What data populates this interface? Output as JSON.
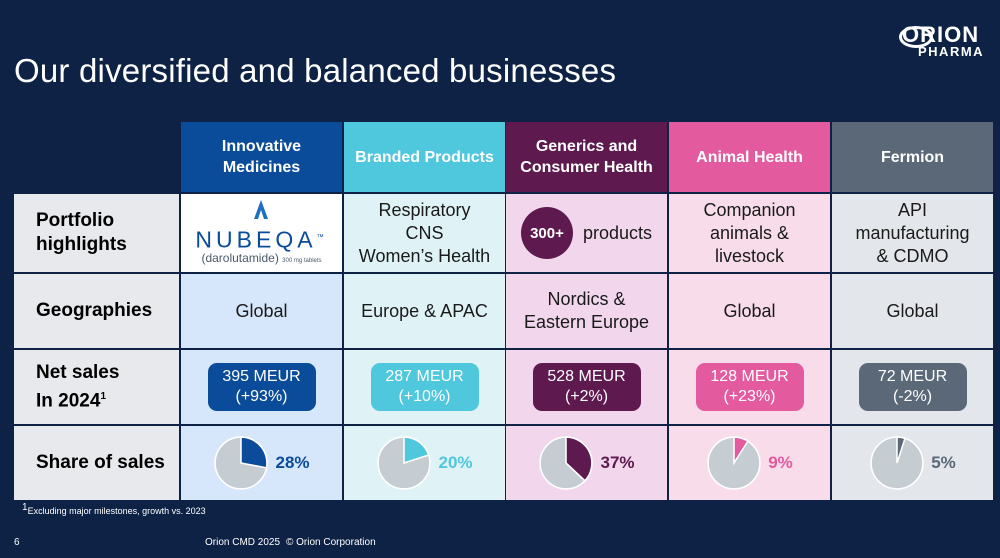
{
  "slide_title": "Our diversified and balanced businesses",
  "logo": {
    "line1": "ORION",
    "line2": "PHARMA"
  },
  "columns": [
    {
      "name": "Innovative Medicines",
      "head_color": "#0a4c9a",
      "bg": "#d6e6fb",
      "accent": "#0a4c9a",
      "portfolio": "",
      "geography": "Global",
      "net_sales": "395 MEUR",
      "growth": "(+93%)",
      "share": 28,
      "share_label": "28%"
    },
    {
      "name": "Branded Products",
      "head_color": "#4fc7dc",
      "bg": "#dff3f7",
      "accent": "#4fc7dc",
      "portfolio": "Respiratory\nCNS\nWomen’s Health",
      "geography": "Europe & APAC",
      "net_sales": "287 MEUR",
      "growth": "(+10%)",
      "share": 20,
      "share_label": "20%"
    },
    {
      "name": "Generics and Consumer Health",
      "head_color": "#5e1a4f",
      "bg": "#f1d6ec",
      "accent": "#5e1a4f",
      "portfolio": "products",
      "geography": "Nordics &\nEastern Europe",
      "net_sales": "528 MEUR",
      "growth": "(+2%)",
      "share": 37,
      "share_label": "37%"
    },
    {
      "name": "Animal Health",
      "head_color": "#e35a9f",
      "bg": "#f8dcea",
      "accent": "#e35a9f",
      "portfolio": "Companion\nanimals &\nlivestock",
      "geography": "Global",
      "net_sales": "128 MEUR",
      "growth": "(+23%)",
      "share": 9,
      "share_label": "9%"
    },
    {
      "name": "Fermion",
      "head_color": "#5a6878",
      "bg": "#e3e6ea",
      "accent": "#5a6878",
      "portfolio": "API\nmanufacturing\n& CDMO",
      "geography": "Global",
      "net_sales": "72 MEUR",
      "growth": "(-2%)",
      "share": 5,
      "share_label": "5%"
    }
  ],
  "row_labels": {
    "portfolio": "Portfolio\nhighlights",
    "geographies": "Geographies",
    "net_sales": "Net sales\nIn 2024",
    "net_sales_sup": "1",
    "share": "Share of sales"
  },
  "generics_badge": "300+",
  "nubeqa": {
    "brand": "NUBEQA",
    "tm": "™",
    "generic": "(darolutamide)",
    "dose": "300 mg tablets"
  },
  "footnote": {
    "sup": "1",
    "text": "Excluding major milestones, growth vs. 2023"
  },
  "footer": {
    "page": "6",
    "event": "Orion CMD 2025",
    "copyright": "© Orion Corporation"
  },
  "chart_data": {
    "type": "pie",
    "title": "Share of sales",
    "categories": [
      "Innovative Medicines",
      "Branded Products",
      "Generics and Consumer Health",
      "Animal Health",
      "Fermion"
    ],
    "values": [
      28,
      20,
      37,
      9,
      5
    ],
    "unit": "%"
  }
}
